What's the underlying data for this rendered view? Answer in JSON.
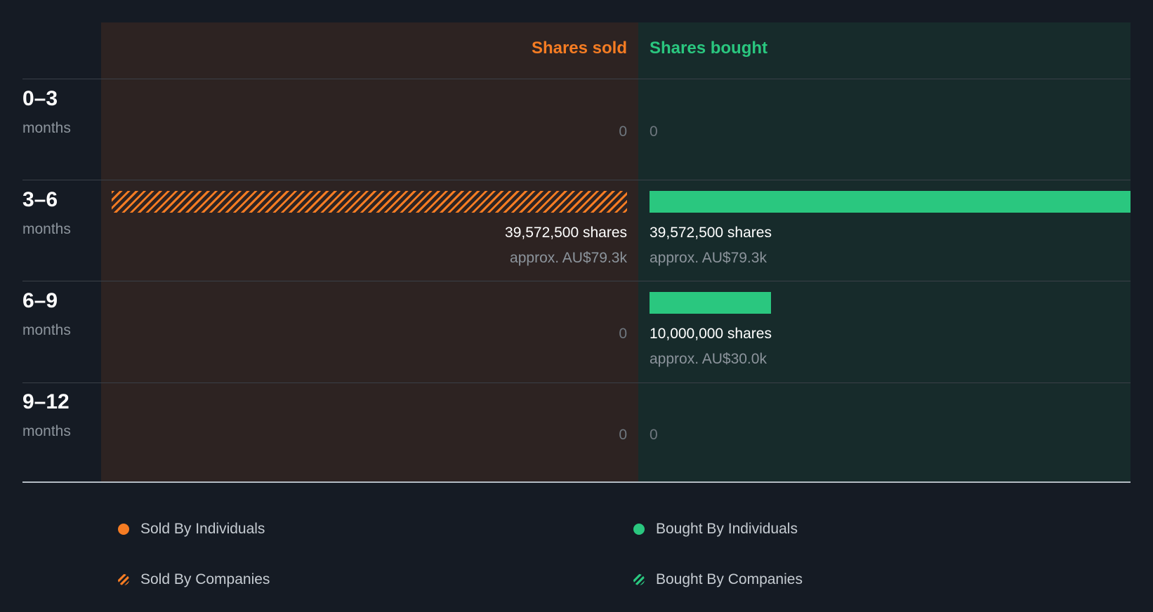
{
  "chart_data": {
    "type": "bar",
    "headers": {
      "sold": "Shares sold",
      "bought": "Shares bought"
    },
    "rows": [
      {
        "range": "0–3",
        "unit": "months",
        "sold": {
          "value": 0,
          "label": "0",
          "by": ""
        },
        "bought": {
          "value": 0,
          "label": "0",
          "by": ""
        }
      },
      {
        "range": "3–6",
        "unit": "months",
        "sold": {
          "value": 39572500,
          "shares": "39,572,500 shares",
          "approx": "approx. AU$79.3k",
          "by": "companies"
        },
        "bought": {
          "value": 39572500,
          "shares": "39,572,500 shares",
          "approx": "approx. AU$79.3k",
          "by": "individuals"
        }
      },
      {
        "range": "6–9",
        "unit": "months",
        "sold": {
          "value": 0,
          "label": "0",
          "by": ""
        },
        "bought": {
          "value": 10000000,
          "shares": "10,000,000 shares",
          "approx": "approx. AU$30.0k",
          "by": "individuals"
        }
      },
      {
        "range": "9–12",
        "unit": "months",
        "sold": {
          "value": 0,
          "label": "0",
          "by": ""
        },
        "bought": {
          "value": 0,
          "label": "0",
          "by": ""
        }
      }
    ],
    "legend": [
      {
        "label": "Sold By Individuals",
        "style": "solid",
        "color": "#f57c23"
      },
      {
        "label": "Bought By Individuals",
        "style": "solid",
        "color": "#2ac77f"
      },
      {
        "label": "Sold By Companies",
        "style": "hatched",
        "color": "#f57c23"
      },
      {
        "label": "Bought By Companies",
        "style": "hatched",
        "color": "#2ac77f"
      }
    ]
  },
  "colors": {
    "sold": "#f57c23",
    "bought": "#2ac77f",
    "background": "#151b24",
    "sold_panel": "#2d2322",
    "bought_panel": "#172b2b"
  }
}
